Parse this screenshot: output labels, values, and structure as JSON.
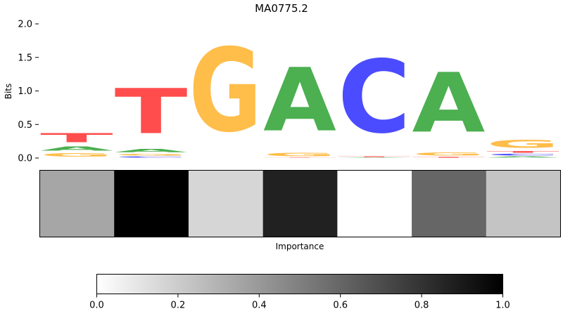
{
  "chart_data": [
    {
      "type": "sequence-logo",
      "title": "MA0775.2",
      "ylabel": "Bits",
      "ylim": [
        0,
        2.0
      ],
      "yticks": [
        0.0,
        0.5,
        1.0,
        1.5,
        2.0
      ],
      "ytick_labels": [
        "0.0",
        "0.5",
        "1.0",
        "1.5",
        "2.0"
      ],
      "letter_colors": {
        "A": "#4caf50",
        "C": "#4b4bff",
        "G": "#ffbd4a",
        "T": "#ff4d4d"
      },
      "positions": [
        {
          "index": 1,
          "letters": [
            {
              "base": "G",
              "bits": 0.09
            },
            {
              "base": "A",
              "bits": 0.1
            },
            {
              "base": "T",
              "bits": 0.22
            }
          ]
        },
        {
          "index": 2,
          "letters": [
            {
              "base": "C",
              "bits": 0.03
            },
            {
              "base": "G",
              "bits": 0.04
            },
            {
              "base": "A",
              "bits": 0.08
            },
            {
              "base": "T",
              "bits": 1.08
            }
          ]
        },
        {
          "index": 3,
          "letters": [
            {
              "base": "G",
              "bits": 2.0
            }
          ]
        },
        {
          "index": 4,
          "letters": [
            {
              "base": "T",
              "bits": 0.01
            },
            {
              "base": "G",
              "bits": 0.09
            },
            {
              "base": "A",
              "bits": 1.52
            }
          ]
        },
        {
          "index": 5,
          "letters": [
            {
              "base": "A",
              "bits": 0.01
            },
            {
              "base": "T",
              "bits": 0.02
            },
            {
              "base": "C",
              "bits": 1.75
            }
          ]
        },
        {
          "index": 6,
          "letters": [
            {
              "base": "T",
              "bits": 0.02
            },
            {
              "base": "G",
              "bits": 0.08
            },
            {
              "base": "A",
              "bits": 1.43
            }
          ]
        },
        {
          "index": 7,
          "letters": [
            {
              "base": "A",
              "bits": 0.03
            },
            {
              "base": "C",
              "bits": 0.04
            },
            {
              "base": "T",
              "bits": 0.04
            },
            {
              "base": "G",
              "bits": 0.2
            }
          ]
        }
      ]
    },
    {
      "type": "heatmap",
      "xlabel": "Importance",
      "values": [
        0.35,
        1.0,
        0.16,
        0.87,
        0.0,
        0.6,
        0.23
      ]
    },
    {
      "type": "colorbar",
      "cmap": "Greys",
      "range": [
        0.0,
        1.0
      ],
      "ticks": [
        0.0,
        0.2,
        0.4,
        0.6,
        0.8,
        1.0
      ],
      "tick_labels": [
        "0.0",
        "0.2",
        "0.4",
        "0.6",
        "0.8",
        "1.0"
      ]
    }
  ]
}
